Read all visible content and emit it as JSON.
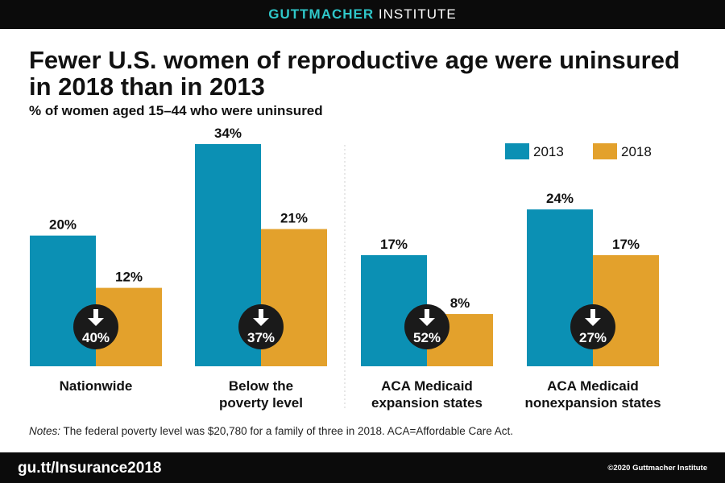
{
  "header": {
    "brand_bold": "GUTTMACHER",
    "brand_regular": " INSTITUTE"
  },
  "title": "Fewer U.S. women of reproductive age were uninsured in 2018 than in 2013",
  "notes": {
    "lead": "Notes:",
    "text": " The federal poverty level was $20,780 for a family of three in 2018. ACA=Affordable Care Act."
  },
  "footer": {
    "url": "gu.tt/Insurance2018",
    "copyright": "©2020 Guttmacher Institute"
  },
  "colors": {
    "2013": "#0b90b4",
    "2018": "#e3a12c",
    "badge": "#1a1a1a",
    "bars_dark": "#0b0b0b",
    "brand_accent": "#2fc7c9"
  },
  "chart_data": {
    "type": "bar",
    "title": "",
    "subtitle": "% of women aged 15–44 who were uninsured",
    "ylim": [
      0,
      34
    ],
    "legend": "top-right",
    "grid": false,
    "categories": [
      [
        "Nationwide"
      ],
      [
        "Below the",
        "poverty level"
      ],
      [
        "ACA Medicaid",
        "expansion states"
      ],
      [
        "ACA Medicaid",
        "nonexpansion states"
      ]
    ],
    "series": [
      {
        "name": "2013",
        "values": [
          20,
          34,
          17,
          24
        ],
        "labels": [
          "20%",
          "34%",
          "17%",
          "24%"
        ]
      },
      {
        "name": "2018",
        "values": [
          12,
          21,
          8,
          17
        ],
        "labels": [
          "12%",
          "21%",
          "8%",
          "17%"
        ]
      }
    ],
    "annotations": {
      "type": "percent decrease",
      "icon": "down-arrow-icon",
      "labels": [
        "40%",
        "37%",
        "52%",
        "27%"
      ]
    }
  }
}
